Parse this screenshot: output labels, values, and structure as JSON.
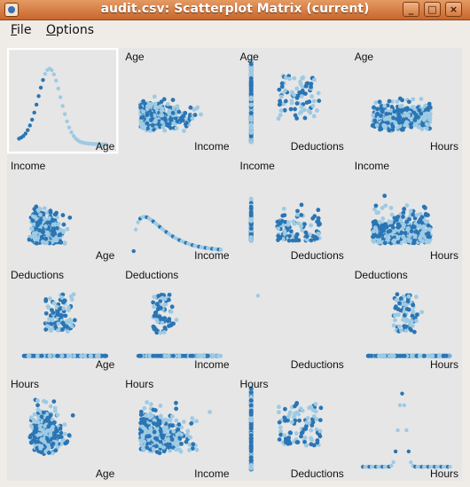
{
  "window": {
    "title": "audit.csv: Scatterplot Matrix (current)",
    "buttons": {
      "minimize": "_",
      "maximize": "□",
      "close": "×"
    }
  },
  "menubar": {
    "items": [
      {
        "label": "File",
        "accel": "F",
        "rest": "ile"
      },
      {
        "label": "Options",
        "accel": "O",
        "rest": "ptions"
      }
    ]
  },
  "colors": {
    "dark_point": "#2a75b4",
    "light_point": "#9ecae3",
    "panel_bg": "#e6e6e6",
    "selected_border": "#ffffff"
  },
  "chart_data": {
    "type": "scatter",
    "subtype": "scatterplot-matrix",
    "variables": [
      "Age",
      "Income",
      "Deductions",
      "Hours"
    ],
    "diagonal": "density",
    "selected_panel": [
      0,
      0
    ],
    "groups": [
      "dark",
      "light"
    ]
  }
}
